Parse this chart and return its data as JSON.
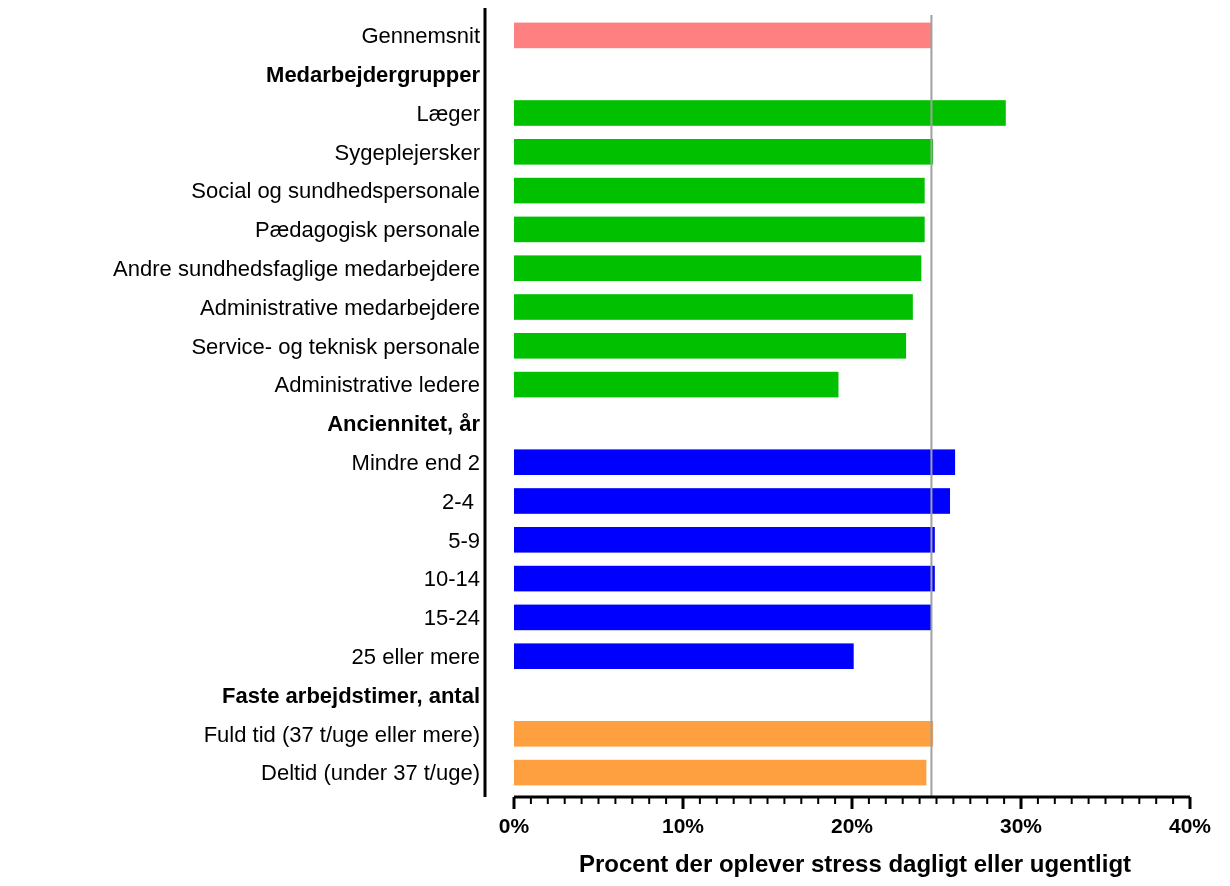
{
  "chart_data": {
    "type": "bar",
    "orientation": "horizontal",
    "xlabel": "Procent der oplever stress dagligt eller ugentligt",
    "categories": [
      "Gennemsnit",
      "Medarbejdergrupper",
      "Læger",
      "Sygeplejersker",
      "Social og sundhedspersonale",
      "Pædagogisk personale",
      "Andre sundhedsfaglige medarbejdere",
      "Administrative medarbejdere",
      "Service- og teknisk personale",
      "Administrative ledere",
      "Anciennitet, år",
      "Mindre end 2",
      "2-4 ",
      "5-9",
      "10-14",
      "15-24",
      "25 eller mere",
      "Faste arbejdstimer, antal",
      "Fuld tid (37 t/uge eller mere)",
      "Deltid (under 37 t/uge)"
    ],
    "values": [
      24.7,
      null,
      29.1,
      24.8,
      24.3,
      24.3,
      24.1,
      23.6,
      23.2,
      19.2,
      null,
      26.1,
      25.8,
      24.9,
      24.9,
      24.7,
      20.1,
      null,
      24.8,
      24.4
    ],
    "colors": [
      "#ff8080",
      null,
      "#00c000",
      "#00c000",
      "#00c000",
      "#00c000",
      "#00c000",
      "#00c000",
      "#00c000",
      "#00c000",
      null,
      "#0000ff",
      "#0000ff",
      "#0000ff",
      "#0000ff",
      "#0000ff",
      "#0000ff",
      null,
      "#ffa040",
      "#ffa040"
    ],
    "xlim": [
      0,
      40
    ],
    "xticks": [
      {
        "value": 0,
        "label": "0%"
      },
      {
        "value": 1,
        "label": null
      },
      {
        "value": 2,
        "label": null
      },
      {
        "value": 3,
        "label": null
      },
      {
        "value": 4,
        "label": null
      },
      {
        "value": 5,
        "label": null
      },
      {
        "value": 6,
        "label": null
      },
      {
        "value": 7,
        "label": null
      },
      {
        "value": 8,
        "label": null
      },
      {
        "value": 9,
        "label": null
      },
      {
        "value": 10,
        "label": "10%"
      },
      {
        "value": 11,
        "label": null
      },
      {
        "value": 12,
        "label": null
      },
      {
        "value": 13,
        "label": null
      },
      {
        "value": 14,
        "label": null
      },
      {
        "value": 15,
        "label": null
      },
      {
        "value": 16,
        "label": null
      },
      {
        "value": 17,
        "label": null
      },
      {
        "value": 18,
        "label": null
      },
      {
        "value": 19,
        "label": null
      },
      {
        "value": 20,
        "label": "20%"
      },
      {
        "value": 21,
        "label": null
      },
      {
        "value": 22,
        "label": null
      },
      {
        "value": 23,
        "label": null
      },
      {
        "value": 24,
        "label": null
      },
      {
        "value": 25,
        "label": null
      },
      {
        "value": 26,
        "label": null
      },
      {
        "value": 27,
        "label": null
      },
      {
        "value": 28,
        "label": null
      },
      {
        "value": 29,
        "label": null
      },
      {
        "value": 30,
        "label": "30%"
      },
      {
        "value": 31,
        "label": null
      },
      {
        "value": 32,
        "label": null
      },
      {
        "value": 33,
        "label": null
      },
      {
        "value": 34,
        "label": null
      },
      {
        "value": 35,
        "label": null
      },
      {
        "value": 36,
        "label": null
      },
      {
        "value": 37,
        "label": null
      },
      {
        "value": 38,
        "label": null
      },
      {
        "value": 39,
        "label": null
      },
      {
        "value": 40,
        "label": "40%"
      }
    ],
    "ref_lines": [
      {
        "axis": "x",
        "value": 24.7,
        "color": "#a0a0a0"
      }
    ],
    "grid": false
  }
}
